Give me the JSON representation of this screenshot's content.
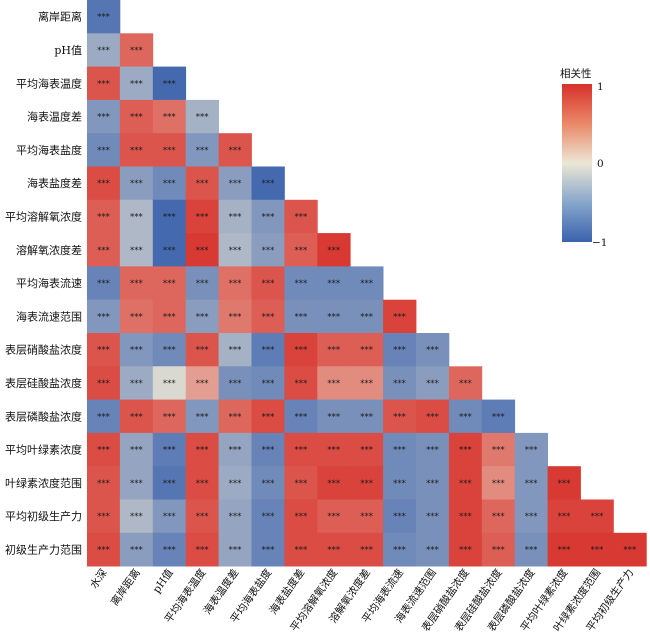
{
  "chart_data": {
    "type": "heatmap",
    "layout": "lower-triangle",
    "variables_rows": [
      "离岸距离",
      "pH值",
      "平均海表温度",
      "海表温度差",
      "平均海表盐度",
      "海表盐度差",
      "平均溶解氧浓度",
      "溶解氧浓度差",
      "平均海表流速",
      "海表流速范围",
      "表层硝酸盐浓度",
      "表层硅酸盐浓度",
      "表层磷酸盐浓度",
      "平均叶绿素浓度",
      "叶绿素浓度范围",
      "平均初级生产力",
      "初级生产力范围"
    ],
    "variables_cols": [
      "水深",
      "离岸距离",
      "pH值",
      "平均海表温度",
      "海表温度差",
      "平均海表盐度",
      "海表盐度差",
      "平均溶解氧浓度",
      "溶解氧浓度差",
      "平均海表流速",
      "海表流速范围",
      "表层硝酸盐浓度",
      "表层硅酸盐浓度",
      "表层磷酸盐浓度",
      "平均叶绿素浓度",
      "叶绿素浓度范围",
      "平均初级生产力"
    ],
    "matrix": [
      [
        -0.85
      ],
      [
        -0.45,
        0.7
      ],
      [
        0.8,
        -0.45,
        -0.95
      ],
      [
        -0.6,
        0.75,
        0.65,
        -0.4
      ],
      [
        -0.7,
        0.8,
        0.8,
        -0.6,
        0.8
      ],
      [
        0.85,
        -0.55,
        -0.7,
        0.8,
        -0.55,
        -0.95
      ],
      [
        0.75,
        -0.35,
        -0.95,
        0.9,
        -0.4,
        -0.6,
        0.8
      ],
      [
        0.75,
        -0.35,
        -0.95,
        0.95,
        -0.35,
        -0.55,
        0.75,
        0.95
      ],
      [
        -0.75,
        0.7,
        0.7,
        -0.65,
        0.65,
        0.8,
        -0.7,
        -0.7,
        -0.7
      ],
      [
        -0.6,
        0.65,
        0.7,
        -0.55,
        0.6,
        0.75,
        -0.65,
        -0.65,
        -0.65,
        0.9
      ],
      [
        0.8,
        -0.6,
        -0.7,
        0.8,
        -0.4,
        -0.8,
        0.9,
        0.75,
        0.75,
        -0.75,
        -0.65
      ],
      [
        0.85,
        -0.45,
        -0.1,
        0.4,
        -0.65,
        -0.7,
        0.85,
        0.5,
        0.5,
        -0.65,
        -0.55,
        0.7
      ],
      [
        -0.75,
        0.8,
        0.7,
        -0.6,
        0.7,
        0.85,
        -0.75,
        -0.65,
        -0.65,
        0.8,
        0.85,
        -0.7,
        -0.8
      ],
      [
        0.85,
        -0.5,
        -0.8,
        0.85,
        -0.5,
        -0.75,
        0.85,
        0.85,
        0.85,
        -0.7,
        -0.65,
        0.9,
        0.6,
        -0.6
      ],
      [
        0.8,
        -0.5,
        -0.85,
        0.85,
        -0.45,
        -0.7,
        0.8,
        0.9,
        0.9,
        -0.7,
        -0.65,
        0.9,
        0.5,
        -0.6,
        0.95
      ],
      [
        0.8,
        -0.35,
        -0.6,
        0.8,
        -0.5,
        -0.75,
        0.85,
        0.75,
        0.75,
        -0.75,
        -0.65,
        0.9,
        0.7,
        -0.6,
        0.9,
        0.9
      ],
      [
        0.85,
        -0.55,
        -0.75,
        0.85,
        -0.5,
        -0.75,
        0.85,
        0.85,
        0.85,
        -0.7,
        -0.65,
        0.9,
        0.75,
        -0.65,
        0.95,
        0.95,
        0.95
      ]
    ],
    "cell_label": "***",
    "color_scale": {
      "min": -1,
      "max": 1,
      "low": "#3b62ad",
      "mid": "#ece6d5",
      "high": "#d7312a"
    },
    "legend": {
      "title": "相关性",
      "ticks": [
        "1",
        "0",
        "−1"
      ],
      "position": "right"
    }
  }
}
